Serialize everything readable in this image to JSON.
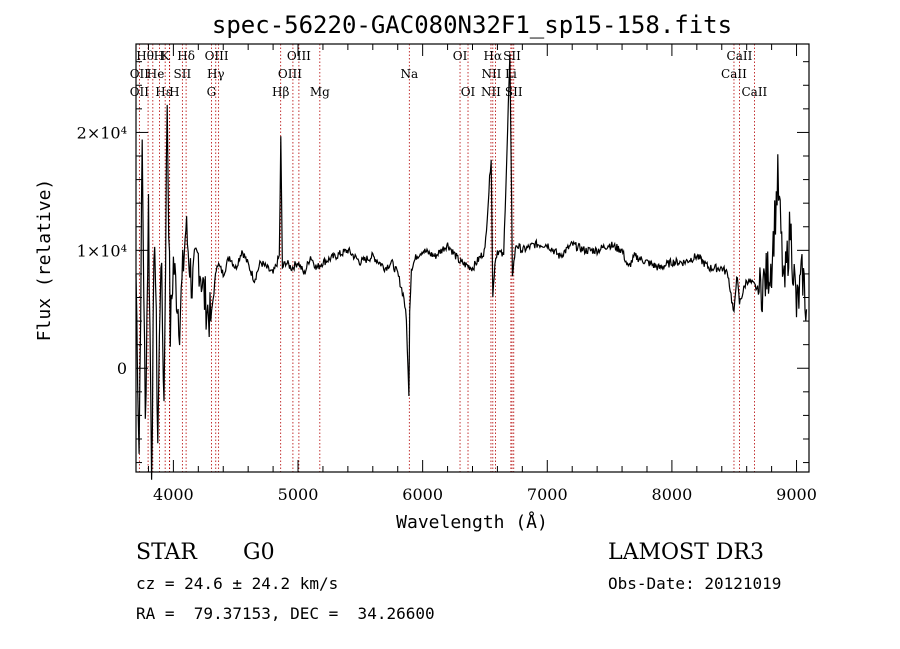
{
  "chart_data": {
    "type": "line",
    "title": "spec-56220-GAC080N32F1_sp15-158.fits",
    "xlabel": "Wavelength (Å)",
    "ylabel": "Flux (relative)",
    "xlim": [
      3700,
      9100
    ],
    "ylim": [
      -8800,
      27500
    ],
    "x_ticks": [
      4000,
      5000,
      6000,
      7000,
      8000,
      9000
    ],
    "y_ticks": [
      {
        "value": 0,
        "label": "0"
      },
      {
        "value": 10000,
        "label": "1×10⁴"
      },
      {
        "value": 20000,
        "label": "2×10⁴"
      }
    ],
    "series": [
      {
        "x": [
          3700,
          3725,
          3750,
          3775,
          3800,
          3825,
          3850,
          3875,
          3900,
          3925,
          3950,
          3975,
          4000,
          4050,
          4100,
          4150,
          4200,
          4250,
          4300,
          4350,
          4400,
          4450,
          4500,
          4550,
          4600,
          4650,
          4700,
          4750,
          4800,
          4850,
          4862,
          4875,
          4900,
          4950,
          5000,
          5050,
          5100,
          5150,
          5200,
          5300,
          5400,
          5500,
          5600,
          5700,
          5750,
          5800,
          5850,
          5870,
          5890,
          5896,
          5910,
          5950,
          6000,
          6100,
          6200,
          6300,
          6400,
          6500,
          6550,
          6563,
          6580,
          6600,
          6650,
          6700,
          6720,
          6750,
          6800,
          6900,
          7000,
          7100,
          7200,
          7300,
          7400,
          7500,
          7600,
          7650,
          7700,
          7800,
          7900,
          8000,
          8100,
          8200,
          8300,
          8400,
          8450,
          8498,
          8520,
          8542,
          8600,
          8662,
          8700,
          8750,
          8800,
          8850,
          8900,
          8950,
          9000,
          9050,
          9080
        ],
        "y": [
          8000,
          -7000,
          19000,
          -5000,
          14000,
          -8000,
          12000,
          -6000,
          10000,
          -3000,
          23000,
          3000,
          9000,
          4000,
          12000,
          7000,
          9500,
          6000,
          4000,
          9000,
          8000,
          9500,
          8500,
          10000,
          8800,
          7500,
          9000,
          8500,
          8000,
          9500,
          19500,
          8500,
          9000,
          8500,
          9000,
          8000,
          9500,
          8500,
          9000,
          9500,
          10000,
          9000,
          9500,
          8500,
          9000,
          8000,
          6000,
          4000,
          -2500,
          5000,
          8500,
          9500,
          10000,
          9500,
          10500,
          9000,
          8500,
          10000,
          18000,
          6000,
          9000,
          10000,
          9500,
          26500,
          8000,
          10500,
          10000,
          10500,
          10500,
          9500,
          10500,
          10000,
          10000,
          10500,
          10000,
          8500,
          9500,
          9000,
          8500,
          9000,
          9000,
          9500,
          8500,
          8500,
          8000,
          4500,
          8000,
          5500,
          7500,
          7000,
          6500,
          7500,
          9000,
          16000,
          6500,
          12000,
          5000,
          8000,
          5000
        ]
      }
    ],
    "lines": [
      {
        "name": "Hθ",
        "wl": 3797,
        "row": 0,
        "dx": -3
      },
      {
        "name": "H",
        "wl": 3835,
        "row": 0,
        "dx": 6
      },
      {
        "name": "K",
        "wl": 3934,
        "row": 0,
        "dx": 0
      },
      {
        "name": "Hδ",
        "wl": 4102,
        "row": 0,
        "dx": 0
      },
      {
        "name": "OIII",
        "wl": 4363,
        "row": 0,
        "dx": -2
      },
      {
        "name": "OIII",
        "wl": 5007,
        "row": 0,
        "dx": 0
      },
      {
        "name": "OI",
        "wl": 6300,
        "row": 0,
        "dx": 0
      },
      {
        "name": "Hα",
        "wl": 6563,
        "row": 0,
        "dx": 0
      },
      {
        "name": "SII",
        "wl": 6717,
        "row": 0,
        "dx": 0
      },
      {
        "name": "CaII",
        "wl": 8542,
        "row": 0,
        "dx": 0
      },
      {
        "name": "OII",
        "wl": 3727,
        "row": 1,
        "dx": 0
      },
      {
        "name": "He",
        "wl": 3889,
        "row": 1,
        "dx": -4
      },
      {
        "name": "SII",
        "wl": 4072,
        "row": 1,
        "dx": 0
      },
      {
        "name": "Hγ",
        "wl": 4340,
        "row": 1,
        "dx": 0
      },
      {
        "name": "OIII",
        "wl": 4959,
        "row": 1,
        "dx": -3
      },
      {
        "name": "Na",
        "wl": 5893,
        "row": 1,
        "dx": 0
      },
      {
        "name": "NII",
        "wl": 6584,
        "row": 1,
        "dx": -4
      },
      {
        "name": "Li",
        "wl": 6708,
        "row": 1,
        "dx": 0
      },
      {
        "name": "CaII",
        "wl": 8498,
        "row": 1,
        "dx": 0
      },
      {
        "name": "OII",
        "wl": 3727,
        "row": 2,
        "dx": 0
      },
      {
        "name": "Hε",
        "wl": 3970,
        "row": 2,
        "dx": -6
      },
      {
        "name": "H",
        "wl": 3968,
        "row": 2,
        "dx": 5
      },
      {
        "name": "G",
        "wl": 4305,
        "row": 2,
        "dx": 0
      },
      {
        "name": "Hβ",
        "wl": 4861,
        "row": 2,
        "dx": 0
      },
      {
        "name": "Mg",
        "wl": 5175,
        "row": 2,
        "dx": 0
      },
      {
        "name": "OI",
        "wl": 6364,
        "row": 2,
        "dx": 0
      },
      {
        "name": "NII",
        "wl": 6548,
        "row": 2,
        "dx": 0
      },
      {
        "name": "SII",
        "wl": 6731,
        "row": 2,
        "dx": 0
      },
      {
        "name": "CaII",
        "wl": 8662,
        "row": 2,
        "dx": 0
      }
    ],
    "colors": {
      "line_marker": "#b30000",
      "spectrum": "#000000"
    }
  },
  "info": {
    "class": "STAR",
    "subclass": "G0",
    "survey": "LAMOST DR3",
    "cz": "cz = 24.6 ± 24.2 km/s",
    "obs_date": "Obs-Date: 20121019",
    "radec": "RA =  79.37153, DEC =  34.26600"
  }
}
